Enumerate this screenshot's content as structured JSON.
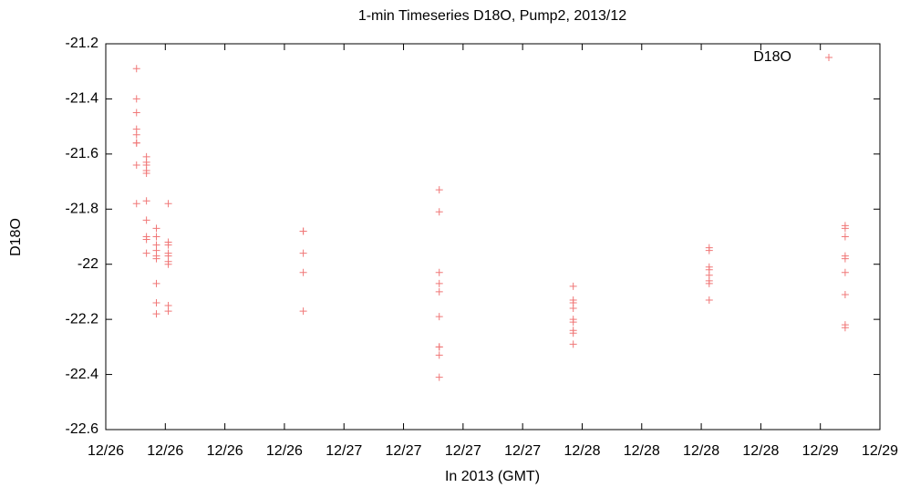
{
  "chart_data": {
    "type": "scatter",
    "title": "1-min Timeseries D18O, Pump2, 2013/12",
    "x_label": "In 2013 (GMT)",
    "y_label": "D18O",
    "series": [
      {
        "name": "D18O",
        "color": "#f07878",
        "x": [
          3.1,
          3.1,
          3.1,
          3.1,
          3.1,
          3.1,
          3.1,
          3.1,
          3.1,
          4.1,
          4.1,
          4.1,
          4.1,
          4.1,
          4.1,
          4.1,
          4.1,
          4.1,
          4.1,
          5.1,
          5.1,
          5.1,
          5.1,
          5.1,
          5.1,
          5.1,
          5.1,
          5.1,
          6.3,
          6.3,
          6.3,
          6.3,
          6.3,
          6.3,
          6.3,
          6.3,
          6.3,
          19.9,
          19.9,
          19.9,
          19.9,
          19.9,
          33.6,
          33.6,
          33.6,
          33.6,
          33.6,
          33.6,
          33.6,
          33.6,
          33.6,
          33.6,
          47.1,
          47.1,
          47.1,
          47.1,
          47.1,
          47.1,
          47.1,
          47.1,
          47.1,
          60.8,
          60.8,
          60.8,
          60.8,
          60.8,
          60.8,
          60.8,
          60.8,
          74.5,
          74.5,
          74.5,
          74.5,
          74.5,
          74.5,
          74.5,
          74.5,
          74.5
        ],
        "values": [
          -21.29,
          -21.4,
          -21.45,
          -21.51,
          -21.53,
          -21.56,
          -21.56,
          -21.64,
          -21.78,
          -21.61,
          -21.63,
          -21.64,
          -21.66,
          -21.67,
          -21.77,
          -21.84,
          -21.9,
          -21.91,
          -21.96,
          -21.87,
          -21.9,
          -21.93,
          -21.95,
          -21.97,
          -21.98,
          -22.07,
          -22.14,
          -22.18,
          -21.78,
          -21.92,
          -21.93,
          -21.96,
          -21.97,
          -21.99,
          -22.0,
          -22.15,
          -22.17,
          -21.88,
          -21.88,
          -21.96,
          -22.03,
          -22.17,
          -21.73,
          -21.81,
          -22.03,
          -22.07,
          -22.1,
          -22.19,
          -22.3,
          -22.3,
          -22.33,
          -22.41,
          -22.08,
          -22.13,
          -22.14,
          -22.16,
          -22.2,
          -22.21,
          -22.24,
          -22.25,
          -22.29,
          -21.94,
          -21.95,
          -22.01,
          -22.02,
          -22.04,
          -22.06,
          -22.07,
          -22.13,
          -21.86,
          -21.87,
          -21.9,
          -21.97,
          -21.98,
          -22.03,
          -22.11,
          -22.22,
          -22.23
        ]
      }
    ],
    "xlim": [
      0,
      78
    ],
    "xticks": [
      {
        "value": 0,
        "label": "12/26"
      },
      {
        "value": 6,
        "label": "12/26"
      },
      {
        "value": 12,
        "label": "12/26"
      },
      {
        "value": 18,
        "label": "12/26"
      },
      {
        "value": 24,
        "label": "12/27"
      },
      {
        "value": 30,
        "label": "12/27"
      },
      {
        "value": 36,
        "label": "12/27"
      },
      {
        "value": 42,
        "label": "12/27"
      },
      {
        "value": 48,
        "label": "12/28"
      },
      {
        "value": 54,
        "label": "12/28"
      },
      {
        "value": 60,
        "label": "12/28"
      },
      {
        "value": 66,
        "label": "12/28"
      },
      {
        "value": 72,
        "label": "12/29"
      },
      {
        "value": 78,
        "label": "12/29"
      }
    ],
    "ylim": [
      -22.6,
      -21.2
    ],
    "yticks": [
      -22.6,
      -22.4,
      -22.2,
      -22,
      -21.8,
      -21.6,
      -21.4,
      -21.2
    ],
    "grid": false,
    "legend": "top-right"
  }
}
